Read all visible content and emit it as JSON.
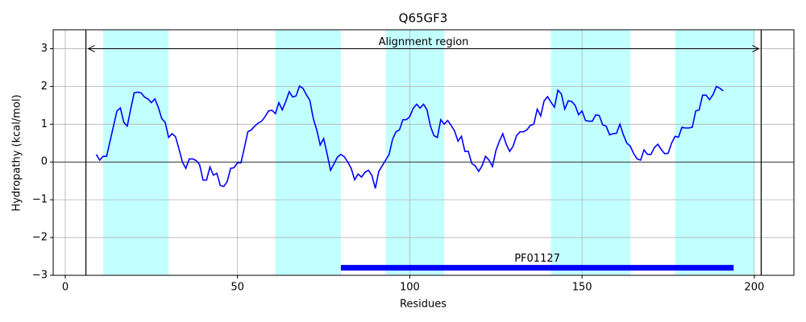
{
  "chart_data": {
    "type": "line",
    "title": "Q65GF3",
    "xlabel": "Residues",
    "ylabel": "Hydropathy (kcal/mol)",
    "x": [
      9,
      10,
      11,
      12,
      13,
      14,
      15,
      16,
      17,
      18,
      19,
      20,
      21,
      22,
      23,
      24,
      25,
      26,
      27,
      28,
      29,
      30,
      31,
      32,
      33,
      34,
      35,
      36,
      37,
      38,
      39,
      40,
      41,
      42,
      43,
      44,
      45,
      46,
      47,
      48,
      49,
      50,
      51,
      52,
      53,
      54,
      55,
      56,
      57,
      58,
      59,
      60,
      61,
      62,
      63,
      64,
      65,
      66,
      67,
      68,
      69,
      70,
      71,
      72,
      73,
      74,
      75,
      76,
      77,
      78,
      79,
      80,
      81,
      82,
      83,
      84,
      85,
      86,
      87,
      88,
      89,
      90,
      91,
      92,
      93,
      94,
      95,
      96,
      97,
      98,
      99,
      100,
      101,
      102,
      103,
      104,
      105,
      106,
      107,
      108,
      109,
      110,
      111,
      112,
      113,
      114,
      115,
      116,
      117,
      118,
      119,
      120,
      121,
      122,
      123,
      124,
      125,
      126,
      127,
      128,
      129,
      130,
      131,
      132,
      133,
      134,
      135,
      136,
      137,
      138,
      139,
      140,
      141,
      142,
      143,
      144,
      145,
      146,
      147,
      148,
      149,
      150,
      151,
      152,
      153,
      154,
      155,
      156,
      157,
      158,
      159,
      160,
      161,
      162,
      163,
      164,
      165,
      166,
      167,
      168,
      169,
      170,
      171,
      172,
      173,
      174,
      175,
      176,
      177,
      178,
      179,
      180,
      181,
      182,
      183,
      184,
      185,
      186,
      187,
      188,
      189,
      190,
      191
    ],
    "series": [
      {
        "color": "#0000ff",
        "values": [
          0.2,
          0.05,
          0.15,
          0.15,
          0.55,
          0.95,
          1.35,
          1.43,
          1.05,
          0.95,
          1.4,
          1.83,
          1.85,
          1.83,
          1.72,
          1.67,
          1.57,
          1.67,
          1.45,
          1.15,
          1.05,
          0.65,
          0.75,
          0.67,
          0.35,
          0.0,
          -0.17,
          0.08,
          0.08,
          0.04,
          -0.07,
          -0.48,
          -0.48,
          -0.13,
          -0.35,
          -0.3,
          -0.62,
          -0.65,
          -0.52,
          -0.17,
          -0.15,
          -0.02,
          -0.02,
          0.38,
          0.8,
          0.85,
          0.95,
          1.03,
          1.08,
          1.2,
          1.35,
          1.37,
          1.28,
          1.57,
          1.38,
          1.6,
          1.86,
          1.72,
          1.75,
          2.01,
          1.95,
          1.78,
          1.63,
          1.15,
          0.85,
          0.45,
          0.62,
          0.22,
          -0.22,
          -0.05,
          0.13,
          0.2,
          0.14,
          0.0,
          -0.17,
          -0.47,
          -0.32,
          -0.4,
          -0.27,
          -0.22,
          -0.35,
          -0.7,
          -0.25,
          -0.1,
          0.05,
          0.2,
          0.6,
          0.8,
          0.85,
          1.12,
          1.12,
          1.2,
          1.42,
          1.53,
          1.43,
          1.53,
          1.38,
          0.95,
          0.7,
          0.65,
          1.12,
          1.0,
          1.1,
          0.97,
          0.82,
          0.55,
          0.68,
          0.28,
          0.28,
          -0.04,
          -0.1,
          -0.25,
          -0.1,
          0.15,
          0.05,
          -0.12,
          0.3,
          0.55,
          0.75,
          0.47,
          0.28,
          0.42,
          0.7,
          0.8,
          0.8,
          0.85,
          0.97,
          1.0,
          1.4,
          1.22,
          1.62,
          1.73,
          1.58,
          1.45,
          1.9,
          1.8,
          1.4,
          1.62,
          1.6,
          1.5,
          1.25,
          1.35,
          1.1,
          1.08,
          1.08,
          1.25,
          1.23,
          0.98,
          0.95,
          0.72,
          0.75,
          0.76,
          1.0,
          0.72,
          0.5,
          0.42,
          0.22,
          0.08,
          0.05,
          0.32,
          0.2,
          0.2,
          0.38,
          0.47,
          0.33,
          0.22,
          0.23,
          0.5,
          0.68,
          0.66,
          0.92,
          0.9,
          0.9,
          0.92,
          1.35,
          1.38,
          1.77,
          1.77,
          1.65,
          1.78,
          2.0,
          1.95,
          1.88
        ]
      }
    ],
    "xlim": [
      -3.5,
      211.5
    ],
    "ylim": [
      -3,
      3.5
    ],
    "xticks": [
      0,
      50,
      100,
      150,
      200
    ],
    "yticks": [
      {
        "value": -3,
        "label": "−3"
      },
      {
        "value": -2,
        "label": "−2"
      },
      {
        "value": -1,
        "label": "−1"
      },
      0,
      1,
      2,
      3
    ],
    "grid": true,
    "shaded_regions": {
      "color": "#c2ffff",
      "ranges": [
        [
          11,
          30
        ],
        [
          61,
          80
        ],
        [
          93,
          110
        ],
        [
          141,
          164
        ],
        [
          177,
          200
        ]
      ]
    },
    "alignment_region": {
      "label": "Alignment region",
      "start": 6,
      "end": 202,
      "y": 3
    },
    "domain": {
      "label": "PF01127",
      "start": 80,
      "end": 194,
      "y": -2.8,
      "color": "#0000ff"
    }
  }
}
